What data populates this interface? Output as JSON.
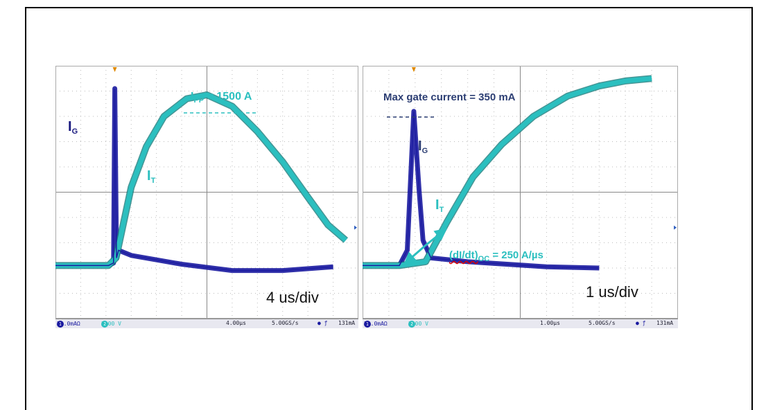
{
  "colors": {
    "gate": "#1a1aa0",
    "thyristor": "#2bbfbf",
    "grid": "#999999",
    "marker": "#e08a00",
    "text_dark": "#2c3e73"
  },
  "chart_data": [
    {
      "type": "line",
      "panel": "left",
      "timebase": "4 us/div",
      "series": [
        {
          "name": "I_G",
          "channel": "50.0mAΩ",
          "points_div": [
            [
              0,
              7.9
            ],
            [
              2.1,
              7.9
            ],
            [
              2.3,
              7.8
            ],
            [
              2.35,
              0.9
            ],
            [
              2.42,
              7.6
            ],
            [
              2.5,
              7.3
            ],
            [
              3,
              7.5
            ],
            [
              5,
              7.85
            ],
            [
              7,
              8.1
            ],
            [
              9,
              8.1
            ],
            [
              11,
              7.95
            ]
          ]
        },
        {
          "name": "I_T",
          "channel": "2.00 V",
          "points_div": [
            [
              0,
              7.9
            ],
            [
              2.1,
              7.9
            ],
            [
              2.4,
              7.6
            ],
            [
              3,
              4.8
            ],
            [
              3.6,
              3.2
            ],
            [
              4.3,
              2.0
            ],
            [
              5.2,
              1.3
            ],
            [
              6.0,
              1.15
            ],
            [
              7.0,
              1.6
            ],
            [
              8.0,
              2.6
            ],
            [
              9.0,
              3.8
            ],
            [
              10.0,
              5.2
            ],
            [
              10.8,
              6.3
            ],
            [
              11.5,
              6.9
            ]
          ]
        }
      ],
      "annotations": {
        "ig_label": "I",
        "ig_sub": "G",
        "it_label": "I",
        "it_sub": "T",
        "ipp_label": "I",
        "ipp_sub": "PP",
        "ipp_value": " = 1500 A",
        "timebase_text": "4 us/div"
      },
      "status": {
        "ch1": "1",
        "ch1_scale": "50.0mAΩ",
        "ch2": "2",
        "ch2_scale": "2.00 V",
        "time": "4.00µs",
        "rate": "5.00GS/s",
        "trig_level": "131mA"
      }
    },
    {
      "type": "line",
      "panel": "right",
      "timebase": "1 us/div",
      "series": [
        {
          "name": "I_G",
          "channel": "50.0mAΩ",
          "points_div": [
            [
              0,
              7.9
            ],
            [
              1.4,
              7.9
            ],
            [
              1.7,
              7.3
            ],
            [
              1.95,
              1.8
            ],
            [
              2.15,
              4.9
            ],
            [
              2.3,
              6.9
            ],
            [
              2.6,
              7.6
            ],
            [
              4,
              7.75
            ],
            [
              7,
              7.95
            ],
            [
              9,
              8.0
            ]
          ]
        },
        {
          "name": "I_T",
          "channel": "2.00 V",
          "points_div": [
            [
              0,
              7.9
            ],
            [
              1.4,
              7.9
            ],
            [
              2.4,
              7.75
            ],
            [
              3.2,
              6.2
            ],
            [
              4.2,
              4.4
            ],
            [
              5.3,
              3.1
            ],
            [
              6.5,
              2.0
            ],
            [
              7.8,
              1.2
            ],
            [
              9,
              0.8
            ],
            [
              10,
              0.6
            ],
            [
              11,
              0.5
            ]
          ]
        }
      ],
      "annotations": {
        "max_gate": "Max gate current = 350 mA",
        "ig_label": "I",
        "ig_sub": "G",
        "it_label": "I",
        "it_sub": "T",
        "didt_label": "(dI/dt)",
        "didt_sub": "OC",
        "didt_value": " = 250 A/µs",
        "timebase_text": "1 us/div"
      },
      "status": {
        "ch1": "1",
        "ch1_scale": "50.0mAΩ",
        "ch2": "2",
        "ch2_scale": "2.00 V",
        "time": "1.00µs",
        "rate": "5.00GS/s",
        "trig_level": "131mA"
      }
    }
  ]
}
